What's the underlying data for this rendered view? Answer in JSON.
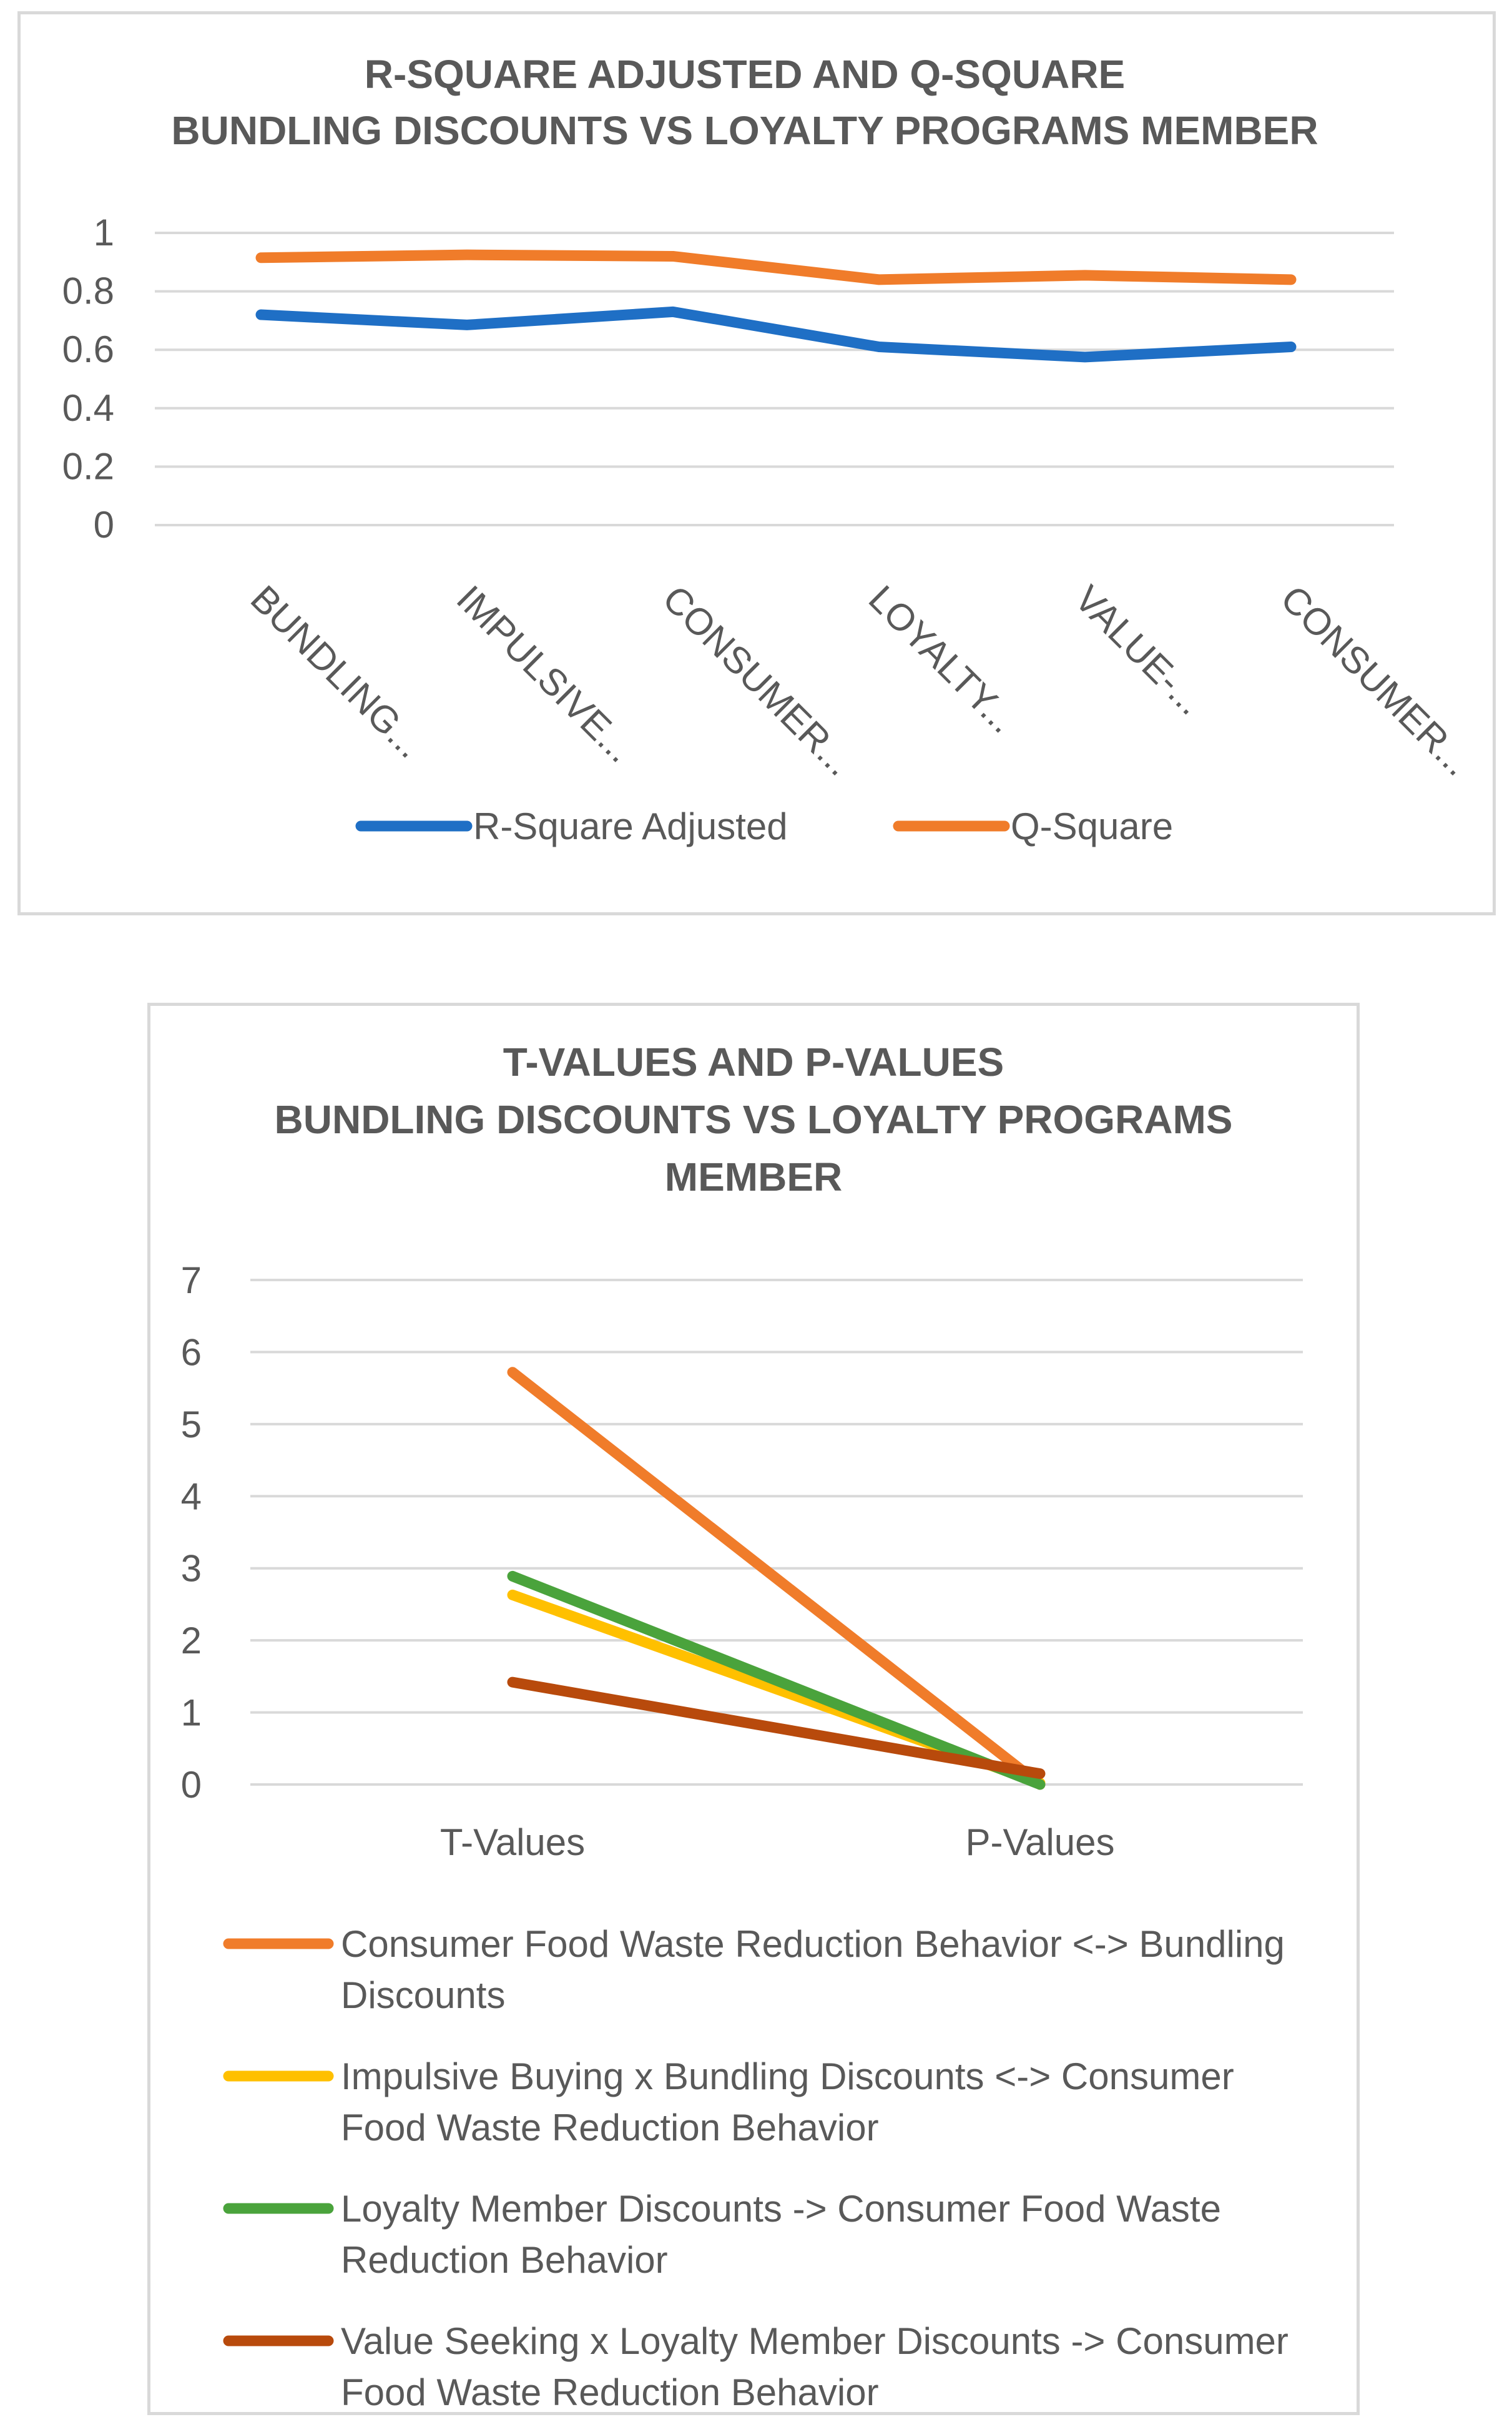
{
  "chart_data": [
    {
      "type": "line",
      "title": [
        "R-SQUARE ADJUSTED AND Q-SQUARE",
        "BUNDLING DISCOUNTS VS LOYALTY PROGRAMS MEMBER"
      ],
      "categories": [
        "BUNDLING...",
        "IMPULSIVE...",
        "CONSUMER...",
        "LOYALTY...",
        "VALUE-...",
        "CONSUMER..."
      ],
      "y_ticks": [
        "0",
        "0.2",
        "0.4",
        "0.6",
        "0.8",
        "1"
      ],
      "ylim": [
        0,
        1
      ],
      "grid": true,
      "legend_position": "bottom",
      "series": [
        {
          "name": "R-Square Adjusted",
          "color": "#1f6fc5",
          "values": [
            0.72,
            0.685,
            0.73,
            0.61,
            0.575,
            0.61
          ]
        },
        {
          "name": "Q-Square",
          "color": "#f07c2a",
          "values": [
            0.915,
            0.925,
            0.92,
            0.84,
            0.855,
            0.84
          ]
        }
      ]
    },
    {
      "type": "line",
      "title": [
        "T-VALUES AND P-VALUES",
        "BUNDLING DISCOUNTS VS LOYALTY PROGRAMS",
        "MEMBER"
      ],
      "categories": [
        "T-Values",
        "P-Values"
      ],
      "y_ticks": [
        "0",
        "1",
        "2",
        "3",
        "4",
        "5",
        "6",
        "7"
      ],
      "ylim": [
        0,
        7
      ],
      "grid": true,
      "legend_position": "bottom",
      "series": [
        {
          "name": "Consumer Food Waste Reduction Behavior <-> Bundling Discounts",
          "legend_lines": [
            "Consumer Food Waste Reduction Behavior <-> Bundling",
            "Discounts"
          ],
          "color": "#f07c2a",
          "values": [
            5.72,
            0.0
          ]
        },
        {
          "name": "Impulsive Buying x Bundling Discounts <-> Consumer Food Waste Reduction Behavior",
          "legend_lines": [
            "Impulsive Buying x Bundling Discounts <-> Consumer",
            "Food Waste Reduction Behavior"
          ],
          "color": "#ffc000",
          "values": [
            2.63,
            0.02
          ]
        },
        {
          "name": "Loyalty Member Discounts -> Consumer Food Waste Reduction Behavior",
          "legend_lines": [
            "Loyalty Member Discounts -> Consumer Food Waste",
            "Reduction Behavior"
          ],
          "color": "#4aa33c",
          "values": [
            2.89,
            0.0
          ]
        },
        {
          "name": "Value Seeking x Loyalty Member Discounts -> Consumer Food Waste Reduction Behavior",
          "legend_lines": [
            "Value Seeking x Loyalty Member Discounts -> Consumer",
            "Food Waste Reduction Behavior"
          ],
          "color": "#b84a0c",
          "values": [
            1.42,
            0.15
          ]
        }
      ]
    }
  ]
}
